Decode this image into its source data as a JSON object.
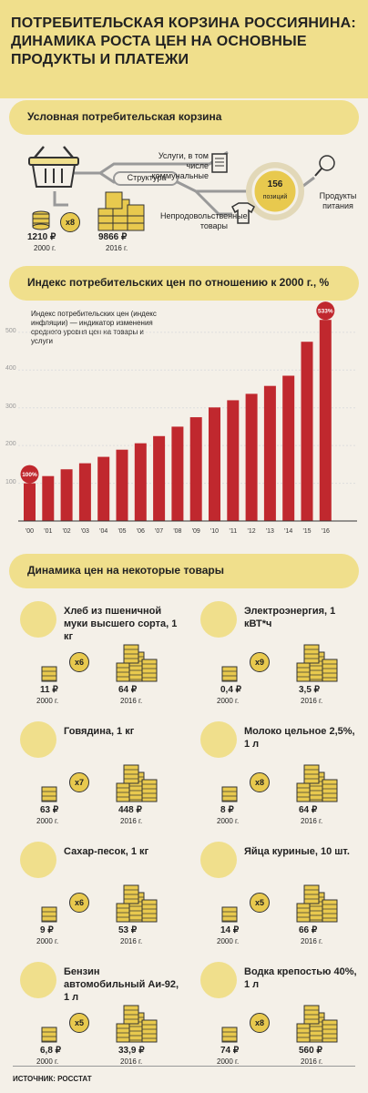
{
  "title": "ПОТРЕБИТЕЛЬСКАЯ КОРЗИНА РОССИЯНИНА: ДИНАМИКА РОСТА ЦЕН НА ОСНОВНЫЕ ПРОДУКТЫ И ПЛАТЕЖИ",
  "section1": {
    "heading": "Условная потребительская корзина",
    "services_label": "Услуги, в том числе коммунальные",
    "structure_label": "Структура",
    "positions_count": "156",
    "positions_label": "позиций",
    "food_label": "Продукты питания",
    "nonfood_label": "Непродовольственные товары",
    "multiplier": "x8",
    "value_2000": "1210 ₽",
    "year_2000": "2000 г.",
    "value_2016": "9866 ₽",
    "year_2016": "2016 г."
  },
  "section2": {
    "heading": "Индекс потребительских цен по отношению к 2000 г., %",
    "note": "Индекс потребительских цен (индекс инфляции) — индикатор изменения среднего уровня цен на товары и услуги",
    "first_label": "100%",
    "last_label": "533%"
  },
  "chart_data": {
    "type": "bar",
    "categories": [
      "'00",
      "'01",
      "'02",
      "'03",
      "'04",
      "'05",
      "'06",
      "'07",
      "'08",
      "'09",
      "'10",
      "'11",
      "'12",
      "'13",
      "'14",
      "'15",
      "'16"
    ],
    "values": [
      100,
      119,
      137,
      153,
      170,
      189,
      206,
      225,
      250,
      275,
      301,
      320,
      337,
      358,
      385,
      475,
      533
    ],
    "yticks": [
      "100",
      "200",
      "300",
      "400",
      "500"
    ],
    "ylim": [
      0,
      560
    ],
    "bar_color": "#c0282e"
  },
  "section3": {
    "heading": "Динамика цен на некоторые товары",
    "items": [
      {
        "name": "Хлеб из пшеничной муки высшего сорта, 1 кг",
        "mult": "x6",
        "v2000": "11 ₽",
        "v2016": "64 ₽",
        "y2000": "2000 г.",
        "y2016": "2016 г.",
        "icon": "bread-icon"
      },
      {
        "name": "Электроэнергия, 1 кВТ*ч",
        "mult": "x9",
        "v2000": "0,4 ₽",
        "v2016": "3,5 ₽",
        "y2000": "2000 г.",
        "y2016": "2016 г.",
        "icon": "lightbulb-icon"
      },
      {
        "name": "Говядина, 1 кг",
        "mult": "x7",
        "v2000": "63 ₽",
        "v2016": "448 ₽",
        "y2000": "2000 г.",
        "y2016": "2016 г.",
        "icon": "steak-icon"
      },
      {
        "name": "Молоко цельное 2,5%, 1 л",
        "mult": "x8",
        "v2000": "8 ₽",
        "v2016": "64 ₽",
        "y2000": "2000 г.",
        "y2016": "2016 г.",
        "icon": "milk-icon"
      },
      {
        "name": "Сахар-песок, 1 кг",
        "mult": "x6",
        "v2000": "9 ₽",
        "v2016": "53 ₽",
        "y2000": "2000 г.",
        "y2016": "2016 г.",
        "icon": "sugar-icon"
      },
      {
        "name": "Яйца куриные, 10 шт.",
        "mult": "x5",
        "v2000": "14 ₽",
        "v2016": "66 ₽",
        "y2000": "2000 г.",
        "y2016": "2016 г.",
        "icon": "eggs-icon"
      },
      {
        "name": "Бензин автомобильный Аи-92, 1 л",
        "mult": "x5",
        "v2000": "6,8 ₽",
        "v2016": "33,9 ₽",
        "y2000": "2000 г.",
        "y2016": "2016 г.",
        "icon": "fuel-can-icon"
      },
      {
        "name": "Водка крепостью 40%, 1 л",
        "mult": "x8",
        "v2000": "74 ₽",
        "v2016": "560 ₽",
        "y2000": "2000 г.",
        "y2016": "2016 г.",
        "icon": "vodka-icon"
      }
    ]
  },
  "source": "ИСТОЧНИК: РОССТАТ"
}
